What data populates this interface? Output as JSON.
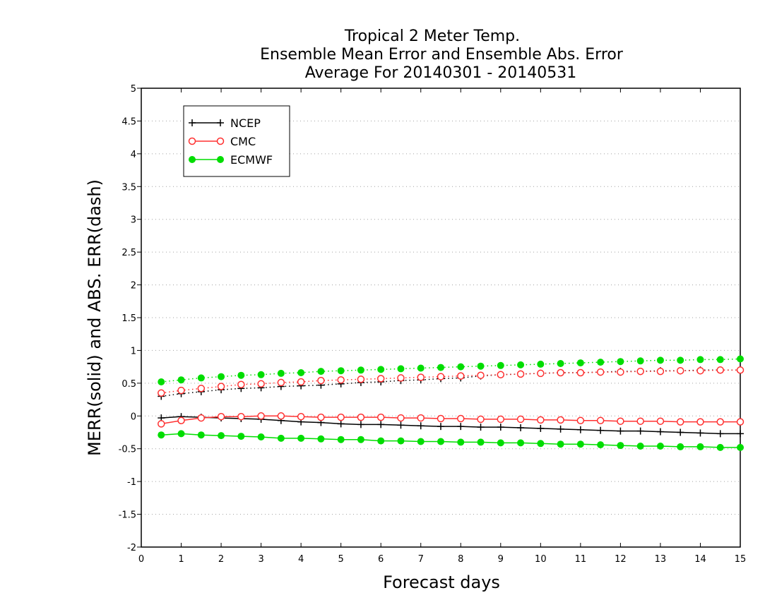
{
  "chart_data": {
    "type": "line",
    "title": [
      "Tropical 2 Meter Temp.",
      "Ensemble Mean Error and Ensemble Abs. Error",
      "Average For 20140301 - 20140531"
    ],
    "xlabel": "Forecast days",
    "ylabel": "MERR(solid) and ABS. ERR(dash)",
    "xlim": [
      0,
      15
    ],
    "ylim": [
      -2,
      5
    ],
    "xticks": [
      0,
      1,
      2,
      3,
      4,
      5,
      6,
      7,
      8,
      9,
      10,
      11,
      12,
      13,
      14,
      15
    ],
    "xtick_labels": [
      "0",
      "1",
      "2",
      "3",
      "4",
      "5",
      "6",
      "7",
      "8",
      "9",
      "10",
      "11",
      "12",
      "13",
      "14",
      "15"
    ],
    "yticks": [
      -2,
      -1.5,
      -1,
      -0.5,
      0,
      0.5,
      1,
      1.5,
      2,
      2.5,
      3,
      3.5,
      4,
      4.5,
      5
    ],
    "ytick_labels": [
      "-2",
      "-1.5",
      "-1",
      "-0.5",
      "0",
      "0.5",
      "1",
      "1.5",
      "2",
      "2.5",
      "3",
      "3.5",
      "4",
      "4.5",
      "5"
    ],
    "grid": "horizontal dotted",
    "legend_position": "top-left",
    "x": [
      0.5,
      1,
      1.5,
      2,
      2.5,
      3,
      3.5,
      4,
      4.5,
      5,
      5.5,
      6,
      6.5,
      7,
      7.5,
      8,
      8.5,
      9,
      9.5,
      10,
      10.5,
      11,
      11.5,
      12,
      12.5,
      13,
      13.5,
      14,
      14.5,
      15
    ],
    "series": [
      {
        "name": "NCEP",
        "color": "#000000",
        "marker": "plus",
        "merr": [
          -0.03,
          -0.01,
          -0.02,
          -0.03,
          -0.04,
          -0.05,
          -0.07,
          -0.09,
          -0.1,
          -0.12,
          -0.13,
          -0.13,
          -0.14,
          -0.15,
          -0.16,
          -0.16,
          -0.17,
          -0.17,
          -0.18,
          -0.19,
          -0.2,
          -0.21,
          -0.22,
          -0.23,
          -0.23,
          -0.24,
          -0.25,
          -0.26,
          -0.27,
          -0.27
        ],
        "abs_err": [
          0.3,
          0.34,
          0.37,
          0.4,
          0.42,
          0.43,
          0.45,
          0.46,
          0.47,
          0.49,
          0.51,
          0.52,
          0.54,
          0.55,
          0.57,
          0.58,
          0.61,
          0.63,
          0.64,
          0.65,
          0.66,
          0.66,
          0.67,
          0.68,
          0.68,
          0.69,
          0.69,
          0.7,
          0.7,
          0.7
        ]
      },
      {
        "name": "CMC",
        "color": "#ff3030",
        "marker": "open-circle",
        "merr": [
          -0.12,
          -0.07,
          -0.03,
          -0.01,
          -0.01,
          0.0,
          0.0,
          -0.01,
          -0.02,
          -0.02,
          -0.02,
          -0.02,
          -0.03,
          -0.03,
          -0.04,
          -0.04,
          -0.05,
          -0.05,
          -0.05,
          -0.06,
          -0.06,
          -0.07,
          -0.07,
          -0.08,
          -0.08,
          -0.08,
          -0.09,
          -0.09,
          -0.09,
          -0.09
        ],
        "abs_err": [
          0.35,
          0.39,
          0.42,
          0.45,
          0.48,
          0.49,
          0.51,
          0.52,
          0.54,
          0.55,
          0.56,
          0.57,
          0.58,
          0.59,
          0.6,
          0.61,
          0.62,
          0.63,
          0.64,
          0.65,
          0.66,
          0.66,
          0.67,
          0.67,
          0.68,
          0.68,
          0.69,
          0.69,
          0.7,
          0.7
        ]
      },
      {
        "name": "ECMWF",
        "color": "#00dd00",
        "marker": "filled-circle",
        "merr": [
          -0.29,
          -0.27,
          -0.29,
          -0.3,
          -0.31,
          -0.32,
          -0.34,
          -0.34,
          -0.35,
          -0.36,
          -0.36,
          -0.38,
          -0.38,
          -0.39,
          -0.39,
          -0.4,
          -0.4,
          -0.41,
          -0.41,
          -0.42,
          -0.43,
          -0.43,
          -0.44,
          -0.45,
          -0.46,
          -0.46,
          -0.47,
          -0.47,
          -0.48,
          -0.48
        ],
        "abs_err": [
          0.52,
          0.55,
          0.58,
          0.6,
          0.62,
          0.63,
          0.65,
          0.66,
          0.68,
          0.69,
          0.7,
          0.71,
          0.72,
          0.73,
          0.74,
          0.75,
          0.76,
          0.77,
          0.78,
          0.79,
          0.8,
          0.81,
          0.82,
          0.83,
          0.84,
          0.85,
          0.85,
          0.86,
          0.86,
          0.87
        ]
      }
    ]
  }
}
